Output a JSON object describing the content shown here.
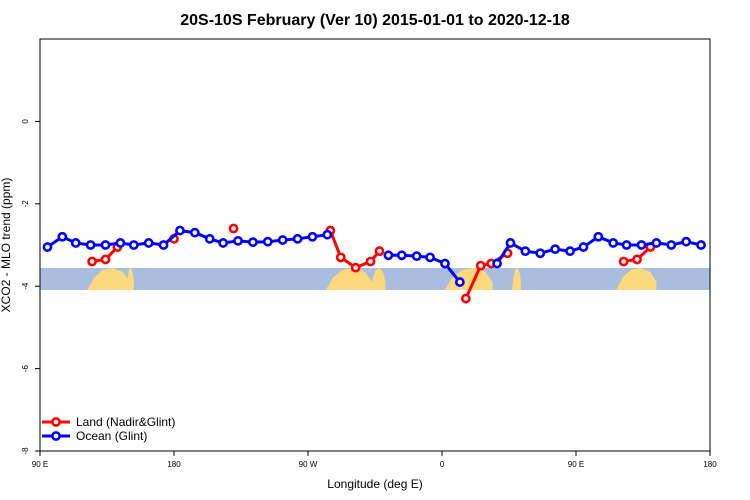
{
  "chart_data": {
    "type": "line",
    "title": "20S-10S February (Ver 10)   2015-01-01 to 2020-12-18",
    "xlabel": "Longitude (deg E)",
    "ylabel": "XCO2 - MLO trend (ppm)",
    "xlim": [
      90,
      540
    ],
    "ylim": [
      -8,
      2
    ],
    "x_ticks": [
      {
        "value": 90,
        "label": "90 E"
      },
      {
        "value": 180,
        "label": "180"
      },
      {
        "value": 270,
        "label": "90 W"
      },
      {
        "value": 360,
        "label": "0"
      },
      {
        "value": 450,
        "label": "90 E"
      },
      {
        "value": 540,
        "label": "180"
      }
    ],
    "y_ticks": [
      {
        "value": 0,
        "label": "0"
      },
      {
        "value": -2,
        "label": "-2"
      },
      {
        "value": -4,
        "label": "-4"
      },
      {
        "value": -6,
        "label": "-6"
      },
      {
        "value": -8,
        "label": "-8"
      }
    ],
    "grid": false,
    "legend_position": "bottom-left",
    "background_band": {
      "lat_range": [
        -20,
        -10
      ],
      "ocean_color": "#a9bedf",
      "land_color": "#fdd97e",
      "land_segments": [
        {
          "start": 122,
          "end": 150
        },
        {
          "start": 148,
          "end": 153
        },
        {
          "start": 282,
          "end": 313
        },
        {
          "start": 312,
          "end": 322
        },
        {
          "start": 362,
          "end": 394
        },
        {
          "start": 407,
          "end": 413
        },
        {
          "start": 477,
          "end": 504
        }
      ]
    },
    "series": [
      {
        "name": "Land (Nadir&Glint)",
        "color": "#ff0000",
        "segments": [
          [
            [
              125,
              -3.4
            ],
            [
              134,
              -3.35
            ],
            [
              142,
              -3.05
            ]
          ],
          [
            [
              180,
              -2.85
            ]
          ],
          [
            [
              220,
              -2.6
            ]
          ],
          [
            [
              285,
              -2.65
            ],
            [
              292,
              -3.3
            ],
            [
              302,
              -3.55
            ],
            [
              312,
              -3.4
            ],
            [
              318,
              -3.15
            ]
          ],
          [
            [
              376,
              -4.3
            ],
            [
              386,
              -3.5
            ],
            [
              393,
              -3.45
            ],
            [
              404,
              -3.2
            ]
          ],
          [
            [
              482,
              -3.4
            ],
            [
              491,
              -3.35
            ],
            [
              500,
              -3.05
            ]
          ]
        ]
      },
      {
        "name": "Ocean (Glint)",
        "color": "#0000ff",
        "segments": [
          [
            [
              95,
              -3.05
            ],
            [
              105,
              -2.8
            ],
            [
              114,
              -2.95
            ],
            [
              124,
              -3.0
            ],
            [
              134,
              -3.0
            ],
            [
              144,
              -2.95
            ],
            [
              153,
              -3.0
            ],
            [
              163,
              -2.95
            ],
            [
              173,
              -3.0
            ],
            [
              184,
              -2.65
            ],
            [
              194,
              -2.7
            ],
            [
              204,
              -2.85
            ],
            [
              213,
              -2.95
            ],
            [
              223,
              -2.9
            ],
            [
              233,
              -2.93
            ],
            [
              243,
              -2.92
            ],
            [
              253,
              -2.88
            ],
            [
              263,
              -2.85
            ],
            [
              273,
              -2.8
            ],
            [
              283,
              -2.75
            ]
          ],
          [
            [
              324,
              -3.25
            ],
            [
              333,
              -3.25
            ],
            [
              343,
              -3.27
            ],
            [
              352,
              -3.3
            ],
            [
              362,
              -3.45
            ],
            [
              372,
              -3.9
            ]
          ],
          [
            [
              397,
              -3.45
            ],
            [
              406,
              -2.95
            ],
            [
              416,
              -3.15
            ],
            [
              426,
              -3.2
            ],
            [
              436,
              -3.1
            ],
            [
              446,
              -3.15
            ],
            [
              455,
              -3.05
            ],
            [
              465,
              -2.8
            ],
            [
              475,
              -2.95
            ],
            [
              484,
              -3.0
            ],
            [
              494,
              -3.0
            ],
            [
              504,
              -2.95
            ],
            [
              514,
              -3.0
            ],
            [
              524,
              -2.92
            ],
            [
              534,
              -3.0
            ]
          ]
        ]
      }
    ]
  }
}
